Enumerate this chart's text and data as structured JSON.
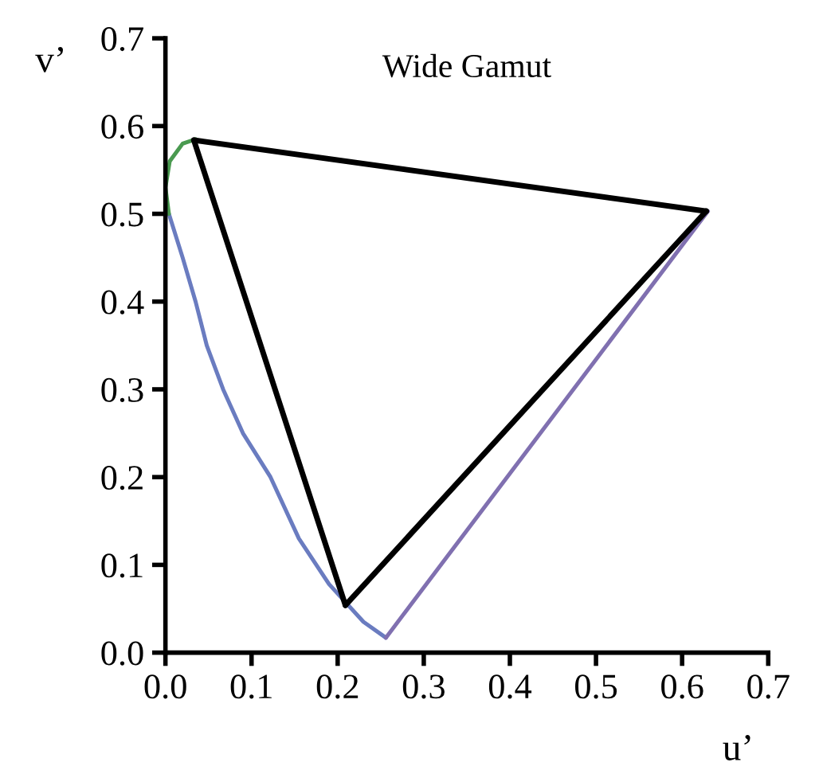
{
  "chart_data": {
    "type": "line",
    "title": "Wide Gamut",
    "xlabel": "u’",
    "ylabel": "v’",
    "xlim": [
      0.0,
      0.7
    ],
    "ylim": [
      0.0,
      0.7
    ],
    "xticks": [
      {
        "value": 0.0,
        "label": "0.0"
      },
      0.1,
      0.2,
      0.3,
      0.4,
      0.5,
      0.6,
      0.7
    ],
    "yticks": [
      {
        "value": 0.0,
        "label": "0.0"
      },
      0.1,
      0.2,
      0.3,
      0.4,
      0.5,
      0.6,
      0.7
    ],
    "grid": false,
    "legend": false,
    "marker": "none",
    "line_style": "solid",
    "series": [
      {
        "color": "#6a7cc0",
        "x": [
          0.256,
          0.23,
          0.19,
          0.155,
          0.122,
          0.09,
          0.067,
          0.048,
          0.035,
          0.02,
          0.004
        ],
        "values": [
          0.017,
          0.035,
          0.078,
          0.13,
          0.2,
          0.25,
          0.3,
          0.35,
          0.4,
          0.45,
          0.5
        ]
      },
      {
        "color": "#4a9a50",
        "x": [
          0.004,
          0.0,
          0.005,
          0.02,
          0.035
        ],
        "values": [
          0.5,
          0.53,
          0.56,
          0.58,
          0.585
        ]
      },
      {
        "color": "#8070b0",
        "x": [
          0.63,
          0.256
        ],
        "values": [
          0.503,
          0.017
        ]
      },
      {
        "color": "#000000",
        "x": [
          0.033,
          0.628
        ],
        "values": [
          0.584,
          0.503
        ]
      },
      {
        "color": "#000000",
        "x": [
          0.628,
          0.209
        ],
        "values": [
          0.503,
          0.054
        ]
      },
      {
        "color": "#000000",
        "x": [
          0.209,
          0.033
        ],
        "values": [
          0.054,
          0.584
        ]
      }
    ]
  }
}
